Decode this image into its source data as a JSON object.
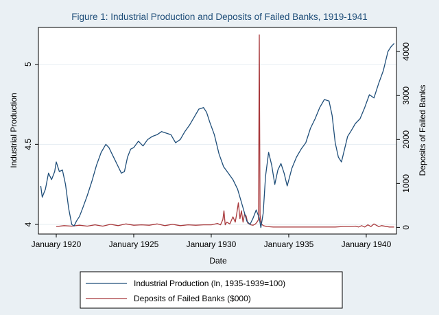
{
  "chart_data": {
    "type": "line",
    "title": "Figure 1: Industrial Production and Deposits of Failed Banks, 1919-1941",
    "xlabel": "Date",
    "ylabel_left": "Industrial Production",
    "ylabel_right": "Deposits of Failed Banks",
    "xlim": [
      1918.85,
      1941.95
    ],
    "ylim_left": [
      3.94,
      5.23
    ],
    "ylim_right": [
      -150,
      4550
    ],
    "x_ticks": [
      1920,
      1925,
      1930,
      1935,
      1940
    ],
    "x_tick_labels": [
      "January 1920",
      "January 1925",
      "January 1930",
      "January 1935",
      "January 1940"
    ],
    "y_ticks_left": [
      4,
      4.5,
      5
    ],
    "y_tick_labels_left": [
      "4",
      "4.5",
      "5"
    ],
    "y_ticks_right": [
      0,
      1000,
      2000,
      3000,
      4000
    ],
    "y_tick_labels_right": [
      "0",
      "1000",
      "2000",
      "3000",
      "4000"
    ],
    "grid": true,
    "legend_position": "bottom",
    "series": [
      {
        "name": "Industrial Production (ln, 1935-1939=100)",
        "axis": "left",
        "color": "#1f4e79",
        "x": [
          1919.0,
          1919.1,
          1919.3,
          1919.5,
          1919.7,
          1919.9,
          1920.0,
          1920.2,
          1920.4,
          1920.6,
          1920.8,
          1921.0,
          1921.15,
          1921.3,
          1921.5,
          1921.7,
          1922.0,
          1922.3,
          1922.6,
          1922.9,
          1923.2,
          1923.4,
          1923.6,
          1923.8,
          1924.0,
          1924.2,
          1924.4,
          1924.6,
          1924.8,
          1925.0,
          1925.3,
          1925.6,
          1925.9,
          1926.2,
          1926.5,
          1926.8,
          1927.1,
          1927.4,
          1927.7,
          1928.0,
          1928.3,
          1928.6,
          1928.9,
          1929.2,
          1929.5,
          1929.7,
          1929.9,
          1930.2,
          1930.5,
          1930.8,
          1931.1,
          1931.4,
          1931.7,
          1932.0,
          1932.3,
          1932.5,
          1932.7,
          1932.9,
          1933.1,
          1933.2,
          1933.35,
          1933.5,
          1933.7,
          1933.9,
          1934.1,
          1934.3,
          1934.5,
          1934.7,
          1934.9,
          1935.2,
          1935.5,
          1935.8,
          1936.1,
          1936.4,
          1936.7,
          1937.0,
          1937.3,
          1937.6,
          1937.8,
          1938.0,
          1938.2,
          1938.4,
          1938.6,
          1938.8,
          1939.0,
          1939.3,
          1939.6,
          1939.9,
          1940.2,
          1940.5,
          1940.8,
          1941.1,
          1941.4,
          1941.6,
          1941.8
        ],
        "values": [
          4.24,
          4.17,
          4.22,
          4.32,
          4.28,
          4.33,
          4.39,
          4.33,
          4.34,
          4.25,
          4.1,
          4.0,
          3.99,
          4.02,
          4.05,
          4.1,
          4.18,
          4.27,
          4.37,
          4.45,
          4.5,
          4.48,
          4.44,
          4.4,
          4.36,
          4.32,
          4.33,
          4.42,
          4.47,
          4.48,
          4.52,
          4.49,
          4.53,
          4.55,
          4.56,
          4.58,
          4.57,
          4.56,
          4.51,
          4.53,
          4.58,
          4.62,
          4.67,
          4.72,
          4.73,
          4.7,
          4.64,
          4.56,
          4.44,
          4.36,
          4.32,
          4.28,
          4.22,
          4.12,
          4.02,
          4.0,
          4.04,
          4.09,
          4.04,
          3.98,
          4.07,
          4.3,
          4.45,
          4.37,
          4.25,
          4.34,
          4.38,
          4.32,
          4.24,
          4.35,
          4.42,
          4.47,
          4.51,
          4.6,
          4.66,
          4.73,
          4.78,
          4.77,
          4.68,
          4.51,
          4.42,
          4.39,
          4.47,
          4.55,
          4.58,
          4.63,
          4.66,
          4.73,
          4.81,
          4.79,
          4.88,
          4.96,
          5.08,
          5.11,
          5.13
        ]
      },
      {
        "name": "Deposits of Failed Banks ($000)",
        "axis": "right",
        "color": "#a8383b",
        "x": [
          1920.0,
          1920.5,
          1921.0,
          1921.5,
          1922.0,
          1922.5,
          1923.0,
          1923.5,
          1924.0,
          1924.5,
          1925.0,
          1925.5,
          1926.0,
          1926.5,
          1927.0,
          1927.5,
          1928.0,
          1928.5,
          1929.0,
          1929.5,
          1930.0,
          1930.4,
          1930.6,
          1930.75,
          1930.82,
          1930.9,
          1931.0,
          1931.2,
          1931.4,
          1931.55,
          1931.65,
          1931.75,
          1931.85,
          1931.95,
          1932.05,
          1932.15,
          1932.25,
          1932.35,
          1932.45,
          1932.55,
          1932.7,
          1932.85,
          1932.95,
          1933.05,
          1933.1,
          1933.15,
          1933.2,
          1933.25,
          1933.35,
          1933.6,
          1934.0,
          1934.5,
          1935.0,
          1936.0,
          1937.0,
          1938.0,
          1938.5,
          1939.0,
          1939.3,
          1939.5,
          1939.7,
          1939.9,
          1940.1,
          1940.3,
          1940.5,
          1940.8,
          1941.0,
          1941.5,
          1941.8
        ],
        "values": [
          20,
          40,
          30,
          50,
          30,
          60,
          30,
          70,
          40,
          80,
          50,
          60,
          50,
          80,
          40,
          70,
          40,
          60,
          50,
          60,
          60,
          90,
          60,
          180,
          380,
          60,
          120,
          80,
          240,
          120,
          320,
          560,
          200,
          380,
          120,
          300,
          260,
          100,
          80,
          60,
          50,
          80,
          120,
          180,
          4380,
          280,
          120,
          80,
          40,
          20,
          10,
          10,
          10,
          10,
          10,
          10,
          20,
          20,
          30,
          10,
          40,
          10,
          60,
          20,
          80,
          20,
          40,
          10,
          10
        ]
      }
    ]
  }
}
